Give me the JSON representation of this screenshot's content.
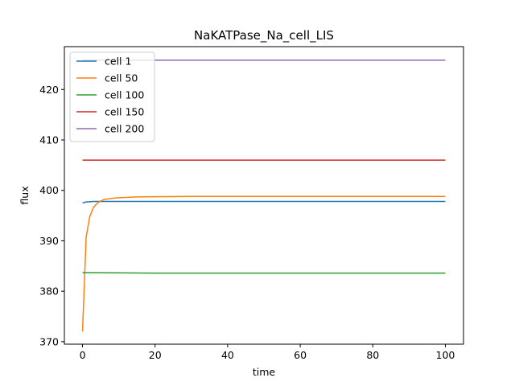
{
  "chart_data": {
    "type": "line",
    "title": "NaKATPase_Na_cell_LIS",
    "xlabel": "time",
    "ylabel": "flux",
    "xlim": [
      -5,
      105
    ],
    "ylim": [
      369.5,
      428.5
    ],
    "xticks": [
      0,
      20,
      40,
      60,
      80,
      100
    ],
    "yticks": [
      370,
      380,
      390,
      400,
      410,
      420
    ],
    "grid": false,
    "legend_position": "top-left",
    "series": [
      {
        "name": "cell 1",
        "color": "#1f77b4",
        "x": [
          0,
          1,
          2,
          3,
          5,
          10,
          20,
          40,
          60,
          80,
          100
        ],
        "y": [
          397.5,
          397.7,
          397.75,
          397.8,
          397.8,
          397.8,
          397.8,
          397.8,
          397.8,
          397.8,
          397.8
        ]
      },
      {
        "name": "cell 50",
        "color": "#ff7f0e",
        "x": [
          0,
          1,
          2,
          3,
          4,
          5,
          6,
          8,
          10,
          15,
          20,
          30,
          40,
          60,
          80,
          100
        ],
        "y": [
          372,
          390.7,
          394.8,
          396.6,
          397.4,
          397.9,
          398.2,
          398.4,
          398.55,
          398.7,
          398.75,
          398.8,
          398.8,
          398.8,
          398.8,
          398.8
        ]
      },
      {
        "name": "cell 100",
        "color": "#2ca02c",
        "x": [
          0,
          20,
          40,
          60,
          80,
          100
        ],
        "y": [
          383.7,
          383.6,
          383.6,
          383.6,
          383.6,
          383.6
        ]
      },
      {
        "name": "cell 150",
        "color": "#d62728",
        "x": [
          0,
          20,
          40,
          60,
          80,
          100
        ],
        "y": [
          406,
          406,
          406,
          406,
          406,
          406
        ]
      },
      {
        "name": "cell 200",
        "color": "#9467bd",
        "x": [
          0,
          20,
          40,
          60,
          80,
          100
        ],
        "y": [
          425.8,
          425.8,
          425.8,
          425.8,
          425.8,
          425.8
        ]
      }
    ]
  }
}
